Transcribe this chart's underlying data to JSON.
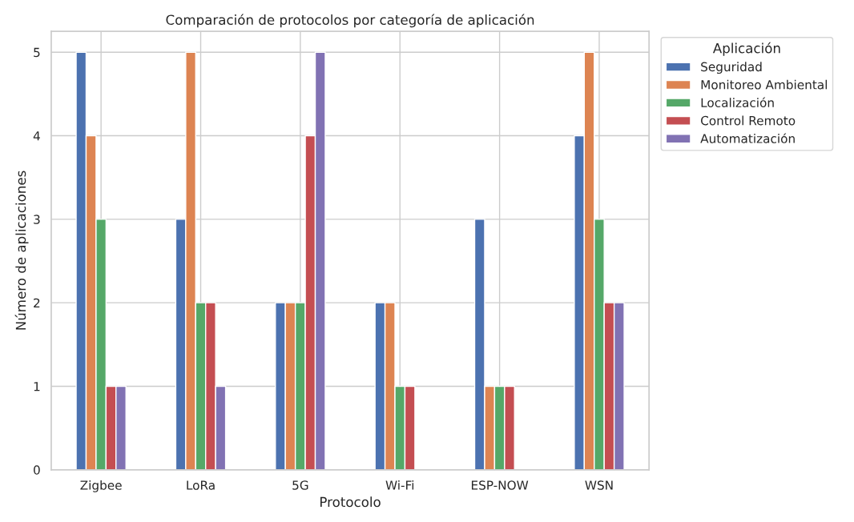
{
  "chart_data": {
    "type": "bar",
    "title": "Comparación de protocolos por categoría de aplicación",
    "xlabel": "Protocolo",
    "ylabel": "Número de aplicaciones",
    "legend_title": "Aplicación",
    "categories": [
      "Zigbee",
      "LoRa",
      "5G",
      "Wi-Fi",
      "ESP-NOW",
      "WSN"
    ],
    "series": [
      {
        "name": "Seguridad",
        "color": "#4c72b0",
        "values": [
          5,
          3,
          2,
          2,
          3,
          4
        ]
      },
      {
        "name": "Monitoreo Ambiental",
        "color": "#dd8452",
        "values": [
          4,
          5,
          2,
          2,
          1,
          5
        ]
      },
      {
        "name": "Localización",
        "color": "#55a868",
        "values": [
          3,
          2,
          2,
          1,
          1,
          3
        ]
      },
      {
        "name": "Control Remoto",
        "color": "#c44e52",
        "values": [
          1,
          2,
          4,
          1,
          1,
          2
        ]
      },
      {
        "name": "Automatización",
        "color": "#8172b3",
        "values": [
          1,
          1,
          5,
          null,
          null,
          2
        ]
      }
    ],
    "ylim": [
      0,
      5.25
    ],
    "yticks": [
      0,
      1,
      2,
      3,
      4,
      5
    ],
    "grid": true,
    "legend": "top right"
  }
}
